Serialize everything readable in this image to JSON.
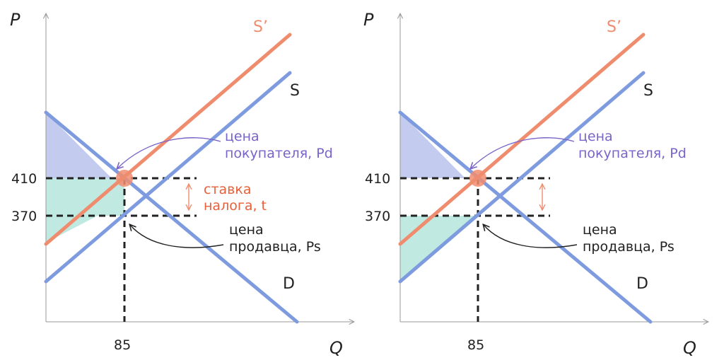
{
  "colors": {
    "demand": "#7f9be0",
    "supply": "#7f9be0",
    "supply_tax": "#f08c6e",
    "consumer_area": "#c3ccef",
    "producer_area": "#bfe9e1",
    "label_buyer": "#7a64c8",
    "label_tax": "#e8603a",
    "label_seller": "#222222",
    "axis": "#9a9a9a",
    "guide": "#222222"
  },
  "chart_data": [
    {
      "type": "line",
      "xlabel": "Q",
      "ylabel": "P",
      "ticks": {
        "x": [
          85
        ],
        "y": [
          410,
          370
        ]
      },
      "curves": {
        "supply_tax": "S’",
        "supply": "S",
        "demand": "D"
      },
      "equilibrium": {
        "q": 85,
        "pd": 410,
        "ps": 370
      },
      "shaded": [
        "consumer_surplus",
        "producer_surplus_after_tax"
      ],
      "annotations": {
        "buyer_price": [
          "цена",
          "покупателя, Pd"
        ],
        "tax_rate": [
          "ставка",
          "налога, t"
        ],
        "seller_price": [
          "цена",
          "продавца, Ps"
        ]
      }
    },
    {
      "type": "line",
      "xlabel": "Q",
      "ylabel": "P",
      "ticks": {
        "x": [
          85
        ],
        "y": [
          410,
          370
        ]
      },
      "curves": {
        "supply_tax": "S’",
        "supply": "S",
        "demand": "D"
      },
      "equilibrium": {
        "q": 85,
        "pd": 410,
        "ps": 370
      },
      "shaded": [
        "consumer_surplus",
        "producer_surplus"
      ],
      "annotations": {
        "buyer_price": [
          "цена",
          "покупателя, Pd"
        ],
        "seller_price": [
          "цена",
          "продавца, Ps"
        ]
      }
    }
  ]
}
